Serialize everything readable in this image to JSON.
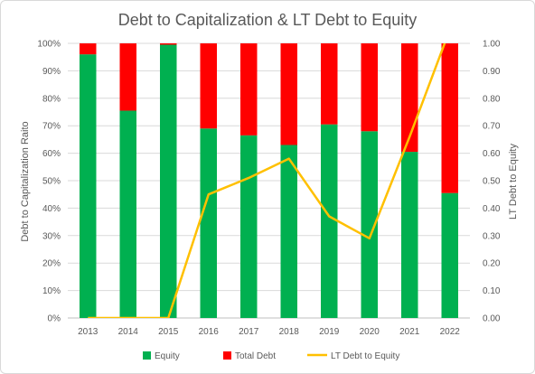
{
  "chart_data": {
    "type": "bar",
    "title": "Debt to Capitalization & LT Debt to Equity",
    "categories": [
      "2013",
      "2014",
      "2015",
      "2016",
      "2017",
      "2018",
      "2019",
      "2020",
      "2021",
      "2022"
    ],
    "series": [
      {
        "name": "Equity",
        "kind": "stacked-bar",
        "axis": "left",
        "color": "#00b050",
        "values": [
          96,
          75.5,
          99.5,
          69,
          66.5,
          63,
          70.5,
          68,
          60.5,
          45.5
        ]
      },
      {
        "name": "Total Debt",
        "kind": "stacked-bar",
        "axis": "left",
        "color": "#ff0000",
        "values": [
          4,
          24.5,
          0.5,
          31,
          33.5,
          37,
          29.5,
          32,
          39.5,
          54.5
        ]
      },
      {
        "name": "LT Debt to Equity",
        "kind": "line",
        "axis": "right",
        "color": "#ffc000",
        "values": [
          0,
          0,
          0,
          0.45,
          0.51,
          0.58,
          0.37,
          0.29,
          0.66,
          1.05
        ]
      }
    ],
    "ylabel": "Debt to Capitalization Raito",
    "y2label": "LT Debt to Equity",
    "ylim": [
      0,
      100
    ],
    "y2lim": [
      0,
      1
    ],
    "yticks": [
      "0%",
      "10%",
      "20%",
      "30%",
      "40%",
      "50%",
      "60%",
      "70%",
      "80%",
      "90%",
      "100%"
    ],
    "y2ticks": [
      "0.00",
      "0.10",
      "0.20",
      "0.30",
      "0.40",
      "0.50",
      "0.60",
      "0.70",
      "0.80",
      "0.90",
      "1.00"
    ],
    "grid": true,
    "legend": "bottom"
  }
}
